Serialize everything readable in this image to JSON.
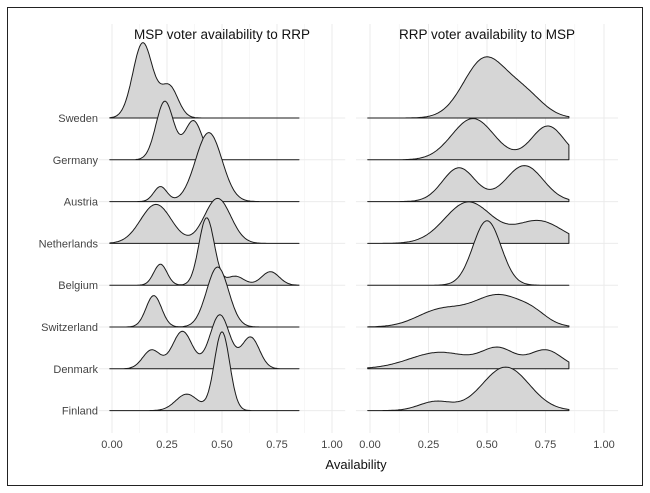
{
  "chart_data": {
    "type": "ridgeline",
    "xlabel": "Availability",
    "x_ticks": [
      "0.00",
      "0.25",
      "0.50",
      "0.75",
      "1.00"
    ],
    "xlim": [
      0,
      1
    ],
    "countries": [
      "Sweden",
      "Germany",
      "Austria",
      "Netherlands",
      "Belgium",
      "Switzerland",
      "Denmark",
      "Finland"
    ],
    "panels": [
      {
        "title": "MSP voter availability to RRP",
        "series": [
          {
            "country": "Sweden",
            "peaks": [
              [
                0.14,
                0.045,
                1.0
              ],
              [
                0.26,
                0.04,
                0.42
              ]
            ]
          },
          {
            "country": "Germany",
            "peaks": [
              [
                0.24,
                0.04,
                0.78
              ],
              [
                0.37,
                0.04,
                0.52
              ]
            ]
          },
          {
            "country": "Austria",
            "peaks": [
              [
                0.22,
                0.03,
                0.2
              ],
              [
                0.44,
                0.06,
                0.92
              ]
            ]
          },
          {
            "country": "Netherlands",
            "peaks": [
              [
                0.2,
                0.07,
                0.52
              ],
              [
                0.48,
                0.06,
                0.6
              ]
            ]
          },
          {
            "country": "Belgium",
            "peaks": [
              [
                0.22,
                0.03,
                0.28
              ],
              [
                0.43,
                0.035,
                0.9
              ],
              [
                0.56,
                0.04,
                0.12
              ],
              [
                0.72,
                0.04,
                0.18
              ]
            ]
          },
          {
            "country": "Switzerland",
            "peaks": [
              [
                0.19,
                0.035,
                0.42
              ],
              [
                0.48,
                0.05,
                0.8
              ]
            ]
          },
          {
            "country": "Denmark",
            "peaks": [
              [
                0.18,
                0.04,
                0.25
              ],
              [
                0.32,
                0.045,
                0.5
              ],
              [
                0.49,
                0.045,
                0.72
              ],
              [
                0.63,
                0.04,
                0.42
              ]
            ]
          },
          {
            "country": "Finland",
            "peaks": [
              [
                0.34,
                0.05,
                0.22
              ],
              [
                0.5,
                0.035,
                1.05
              ]
            ]
          }
        ]
      },
      {
        "title": "RRP voter availability to MSP",
        "series": [
          {
            "country": "Sweden",
            "peaks": [
              [
                0.49,
                0.09,
                0.78
              ],
              [
                0.66,
                0.08,
                0.3
              ]
            ]
          },
          {
            "country": "Germany",
            "peaks": [
              [
                0.44,
                0.09,
                0.55
              ],
              [
                0.76,
                0.07,
                0.45
              ]
            ]
          },
          {
            "country": "Austria",
            "peaks": [
              [
                0.38,
                0.07,
                0.45
              ],
              [
                0.66,
                0.08,
                0.48
              ]
            ]
          },
          {
            "country": "Netherlands",
            "peaks": [
              [
                0.42,
                0.1,
                0.55
              ],
              [
                0.72,
                0.1,
                0.3
              ]
            ]
          },
          {
            "country": "Belgium",
            "peaks": [
              [
                0.5,
                0.06,
                0.86
              ]
            ]
          },
          {
            "country": "Switzerland",
            "peaks": [
              [
                0.3,
                0.1,
                0.22
              ],
              [
                0.55,
                0.11,
                0.42
              ],
              [
                0.7,
                0.06,
                0.1
              ]
            ]
          },
          {
            "country": "Denmark",
            "peaks": [
              [
                0.3,
                0.13,
                0.22
              ],
              [
                0.55,
                0.07,
                0.25
              ],
              [
                0.75,
                0.07,
                0.25
              ]
            ]
          },
          {
            "country": "Finland",
            "peaks": [
              [
                0.28,
                0.07,
                0.12
              ],
              [
                0.58,
                0.1,
                0.58
              ]
            ]
          }
        ]
      }
    ],
    "fill_color": "#d6d6d6",
    "line_color": "#1a1a1a",
    "grid": true,
    "legend": "none"
  }
}
